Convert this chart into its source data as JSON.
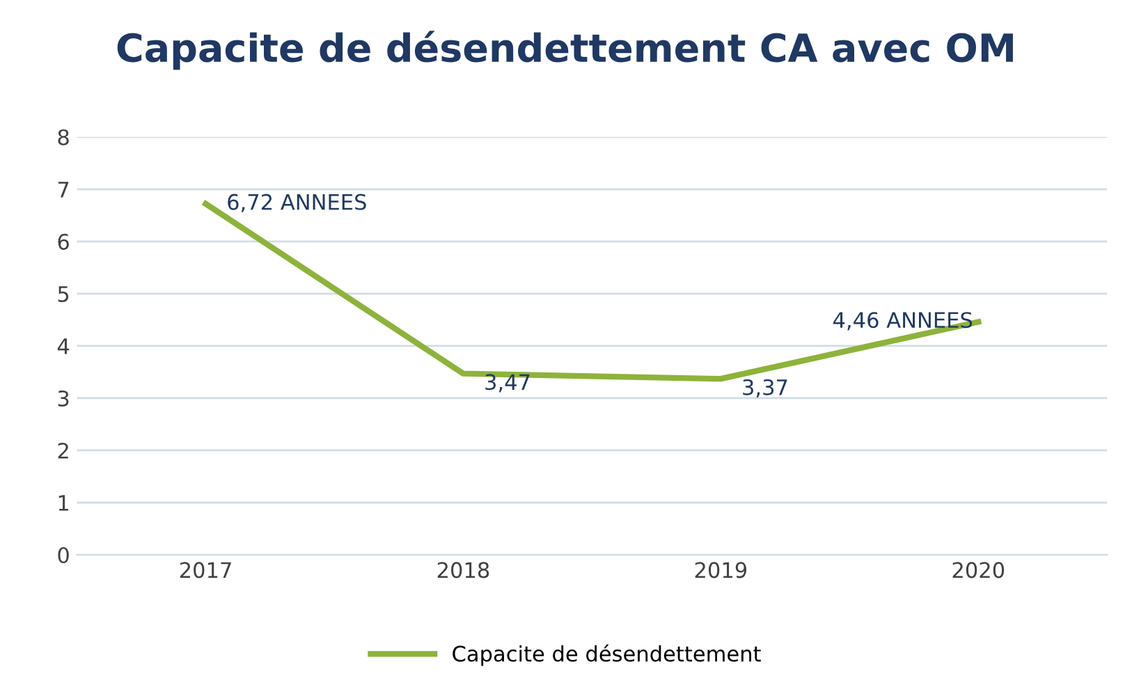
{
  "chart_data": {
    "type": "line",
    "title": "Capacite de désendettement CA avec OM",
    "categories": [
      "2017",
      "2018",
      "2019",
      "2020"
    ],
    "series": [
      {
        "name": "Capacite de désendettement",
        "color": "#8db33a",
        "values": [
          6.72,
          3.47,
          3.37,
          4.46
        ],
        "value_labels": [
          "6,72 ANNEES",
          "3,47",
          "3,37",
          "4,46 ANNEES"
        ]
      }
    ],
    "ylim": [
      0,
      8
    ],
    "yticks": [
      0,
      1,
      2,
      3,
      4,
      5,
      6,
      7,
      8
    ],
    "grid": "y",
    "legend": "bottom",
    "marker": "none",
    "line_style": "solid"
  }
}
